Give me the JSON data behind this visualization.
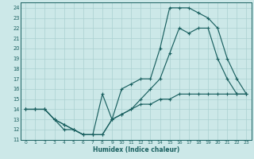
{
  "xlabel": "Humidex (Indice chaleur)",
  "bg_color": "#cce8e8",
  "grid_color": "#aad0d0",
  "line_color": "#1a6060",
  "xlim": [
    -0.5,
    23.5
  ],
  "ylim": [
    11,
    24.5
  ],
  "xticks": [
    0,
    1,
    2,
    3,
    4,
    5,
    6,
    7,
    8,
    9,
    10,
    11,
    12,
    13,
    14,
    15,
    16,
    17,
    18,
    19,
    20,
    21,
    22,
    23
  ],
  "yticks": [
    11,
    12,
    13,
    14,
    15,
    16,
    17,
    18,
    19,
    20,
    21,
    22,
    23,
    24
  ],
  "line1_x": [
    0,
    1,
    2,
    3,
    4,
    5,
    6,
    7,
    8,
    9,
    10,
    11,
    12,
    13,
    14,
    15,
    16,
    17,
    18,
    19,
    20,
    21,
    22,
    23
  ],
  "line1_y": [
    14,
    14,
    14,
    13,
    12.5,
    12,
    11.5,
    11.5,
    15.5,
    13,
    16,
    16.5,
    17,
    17,
    20,
    24,
    24,
    24,
    23.5,
    23,
    22,
    19,
    17,
    15.5
  ],
  "line2_x": [
    0,
    1,
    2,
    3,
    4,
    5,
    6,
    7,
    8,
    9,
    10,
    11,
    12,
    13,
    14,
    15,
    16,
    17,
    18,
    19,
    20,
    21,
    22,
    23
  ],
  "line2_y": [
    14,
    14,
    14,
    13,
    12,
    12,
    11.5,
    11.5,
    11.5,
    13,
    13.5,
    14,
    15,
    16,
    17,
    19.5,
    22,
    21.5,
    22,
    22,
    19,
    17,
    15.5,
    15.5
  ],
  "line3_x": [
    0,
    1,
    2,
    3,
    4,
    5,
    6,
    7,
    8,
    9,
    10,
    11,
    12,
    13,
    14,
    15,
    16,
    17,
    18,
    19,
    20,
    21,
    22,
    23
  ],
  "line3_y": [
    14,
    14,
    14,
    13,
    12.5,
    12,
    11.5,
    11.5,
    11.5,
    13,
    13.5,
    14,
    14.5,
    14.5,
    15,
    15,
    15.5,
    15.5,
    15.5,
    15.5,
    15.5,
    15.5,
    15.5,
    15.5
  ]
}
